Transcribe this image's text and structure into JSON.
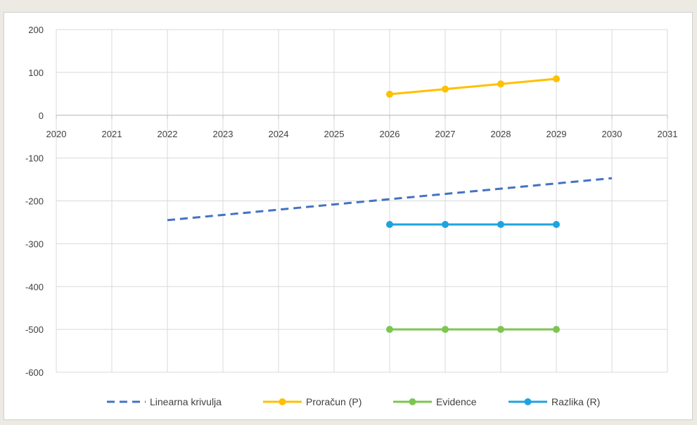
{
  "chart_data": {
    "type": "line",
    "title": "",
    "xlabel": "",
    "ylabel": "",
    "xlim": [
      2020,
      2031
    ],
    "ylim": [
      -600,
      200
    ],
    "x_ticks": [
      "2020",
      "2021",
      "2022",
      "2023",
      "2024",
      "2025",
      "2026",
      "2027",
      "2028",
      "2029",
      "2030",
      "2031"
    ],
    "y_ticks": [
      "200",
      "100",
      "0",
      "-100",
      "-200",
      "-300",
      "-400",
      "-500",
      "-600"
    ],
    "grid": "on",
    "legend_position": "bottom",
    "series": [
      {
        "name": "Linearna krivulja",
        "color": "#4472c4",
        "style": "dashed",
        "markers": false,
        "points": [
          [
            2022,
            -245
          ],
          [
            2030,
            -147
          ]
        ]
      },
      {
        "name": "Proračun (P)",
        "color": "#ffc000",
        "style": "solid",
        "markers": true,
        "points": [
          [
            2026,
            49
          ],
          [
            2027,
            61
          ],
          [
            2028,
            73
          ],
          [
            2029,
            85
          ]
        ]
      },
      {
        "name": "Evidence",
        "color": "#7cc650",
        "style": "solid",
        "markers": true,
        "points": [
          [
            2026,
            -500
          ],
          [
            2027,
            -500
          ],
          [
            2028,
            -500
          ],
          [
            2029,
            -500
          ]
        ]
      },
      {
        "name": "Razlika (R)",
        "color": "#1fa3e0",
        "style": "solid",
        "markers": true,
        "points": [
          [
            2026,
            -255
          ],
          [
            2027,
            -255
          ],
          [
            2028,
            -255
          ],
          [
            2029,
            -255
          ]
        ]
      }
    ]
  }
}
